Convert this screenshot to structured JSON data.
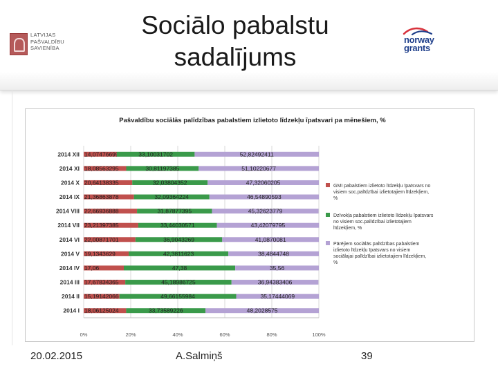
{
  "slide": {
    "title_line1": "Sociālo pabalstu",
    "title_line2": "sadalījums",
    "logo_left_lines": [
      "LATVIJAS",
      "PAŠVALDĪBU",
      "SAVIENĪBA"
    ],
    "logo_right_line1": "norway",
    "logo_right_line2": "grants",
    "footer_date": "20.02.2015",
    "footer_author": "A.Salmiņš",
    "page_number": "39"
  },
  "chart_data": {
    "type": "bar",
    "stacked": "percent",
    "orientation": "horizontal",
    "title": "Pašvaldību sociālās palīdzības pabalstiem izlietoto līdzekļu īpatsvari pa mēnešiem, %",
    "categories": [
      "2014 XII",
      "2014 XI",
      "2014 X",
      "2014 IX",
      "2014 VIII",
      "2014 VII",
      "2014 VI",
      "2014 V",
      "2014 IV",
      "2014 III",
      "2014 II",
      "2014 I"
    ],
    "series": [
      {
        "name": "GMI pabalstiem izlietoto līdzekļu īpatsvars no visiem soc.palīdzībai izlietotajiem līdzekļiem, %",
        "color": "#c0504d",
        "values": [
          14.07476699,
          18.08563295,
          20.64138335,
          21.36863878,
          22.66936888,
          23.21397385,
          22.00871701,
          19.1343629,
          17.06,
          17.67834365,
          15.19142066,
          18.06125024
        ],
        "labels": [
          "14,07476699",
          "18,08563295",
          "20,64138335",
          "21,36863878",
          "22,66936888",
          "23,21397385",
          "22,00871701",
          "19,1343629",
          "17,06",
          "17,67834365",
          "15,19142066",
          "18,06125024"
        ]
      },
      {
        "name": "Dzīvokļa pabalstiem izlietoto līdzekļu īpatsvars no visiem soc.palīdzībai izlietotajiem līdzekļiem, %",
        "color": "#3a9a4a",
        "values": [
          33.10031702,
          30.81197385,
          32.03804352,
          32.09364224,
          31.87877395,
          33.44030571,
          36.9043269,
          42.3811623,
          47.38,
          45.18986725,
          49.66155984,
          33.73589226
        ],
        "labels": [
          "33,10031702",
          "30,81197385",
          "32,03804352",
          "32,09364224",
          "31,87877395",
          "33,44030571",
          "36,9043269",
          "42,3811623",
          "47,38",
          "45,18986725",
          "49,66155984",
          "33,73589226"
        ]
      },
      {
        "name": "Pārējiem sociālās palīdzības pabalstiem izlietoto līdzekļu īpatsvars no visiem sociālajai palīdzībai izlietotajiem līdzekļiem, %",
        "color": "#b4a2d4",
        "values": [
          52.82492411,
          51.10220677,
          47.32060205,
          46.54890593,
          45.32623779,
          43.42079795,
          41.0870081,
          38.4844748,
          35.56,
          36.94383406,
          35.17444069,
          48.2028575
        ],
        "labels": [
          "52,82492411",
          "51,10220677",
          "47,32060205",
          "46,54890593",
          "45,32623779",
          "43,42079795",
          "41,0870081",
          "38,4844748",
          "35,56",
          "36,94383406",
          "35,17444069",
          "48,2028575"
        ]
      }
    ],
    "xlim": [
      0,
      100
    ],
    "xticks": [
      "0%",
      "20%",
      "40%",
      "60%",
      "80%",
      "100%"
    ],
    "grid": true,
    "legend_position": "right"
  }
}
